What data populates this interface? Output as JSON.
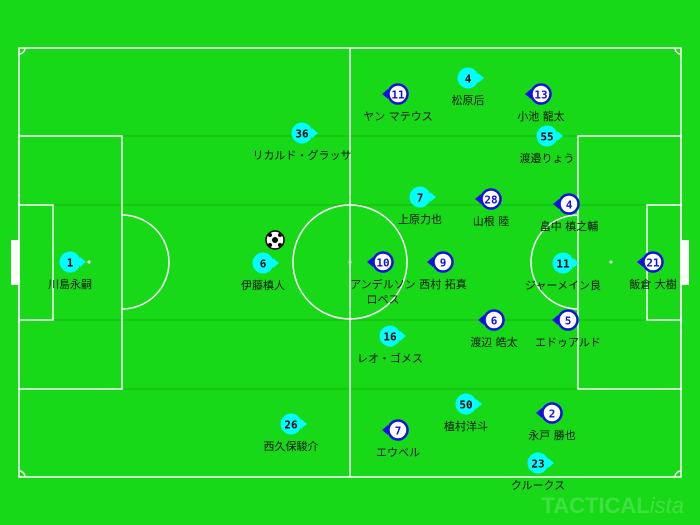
{
  "colors": {
    "pitch": "#17d917",
    "lines": "#ffffff",
    "home": "#00ffff",
    "away_ring": "#1010e0",
    "away_fill": "#ffffff"
  },
  "watermark": {
    "brand": "TACTICAL",
    "suffix": "ista"
  },
  "home": [
    {
      "number": "1",
      "name": "川島永嗣"
    },
    {
      "number": "6",
      "name": "伊藤槙人"
    },
    {
      "number": "36",
      "name": "リカルド・グラッサ"
    },
    {
      "number": "26",
      "name": "西久保駿介"
    },
    {
      "number": "16",
      "name": "レオ・ゴメス"
    },
    {
      "number": "7",
      "name": "上原力也"
    },
    {
      "number": "4",
      "name": "松原后"
    },
    {
      "number": "50",
      "name": "植村洋斗"
    },
    {
      "number": "55",
      "name": "渡邉りょう"
    },
    {
      "number": "23",
      "name": "クルークス"
    },
    {
      "number": "11",
      "name": "ジャーメイン良"
    }
  ],
  "away": [
    {
      "number": "11",
      "name": "ヤン マテウス"
    },
    {
      "number": "13",
      "name": "小池 龍太"
    },
    {
      "number": "28",
      "name": "山根 陸"
    },
    {
      "number": "4",
      "name": "畠中 槙之輔"
    },
    {
      "number": "10",
      "name": "アンデルソン",
      "name2": "ロペス"
    },
    {
      "number": "9",
      "name": "西村 拓真"
    },
    {
      "number": "21",
      "name": "飯倉 大樹"
    },
    {
      "number": "6",
      "name": "渡辺 皓太"
    },
    {
      "number": "5",
      "name": "エドゥアルド"
    },
    {
      "number": "7",
      "name": "エウベル"
    },
    {
      "number": "2",
      "name": "永戸 勝也"
    }
  ]
}
